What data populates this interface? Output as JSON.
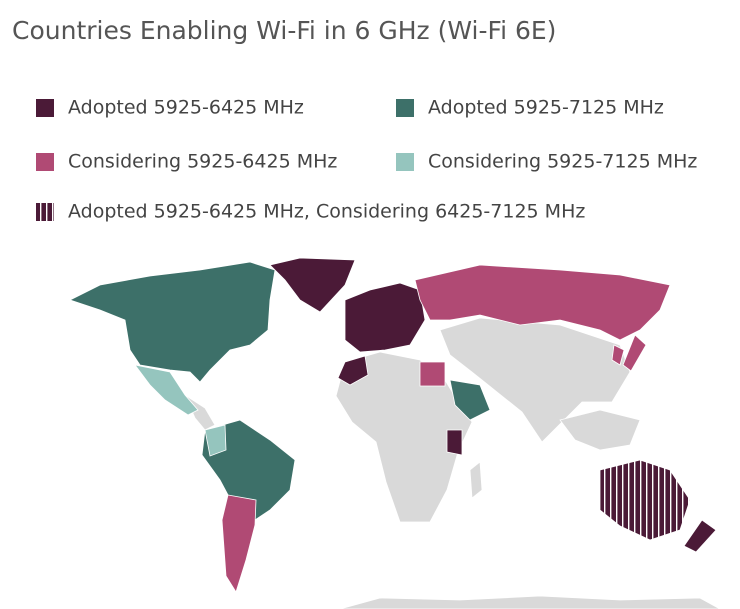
{
  "title": "Countries Enabling Wi-Fi in 6 GHz (Wi-Fi 6E)",
  "legend": [
    {
      "label": "Adopted 5925-6425 MHz",
      "color": "#4b1a37"
    },
    {
      "label": "Adopted 5925-7125 MHz",
      "color": "#3d7069"
    },
    {
      "label": "Considering 5925-6425 MHz",
      "color": "#b04a74"
    },
    {
      "label": "Considering 5925-7125 MHz",
      "color": "#95c5be"
    },
    {
      "label": "Adopted 5925-6425 MHz, Considering 6425-7125 MHz",
      "color": "#4b1a37",
      "pattern": "stripes"
    }
  ]
}
